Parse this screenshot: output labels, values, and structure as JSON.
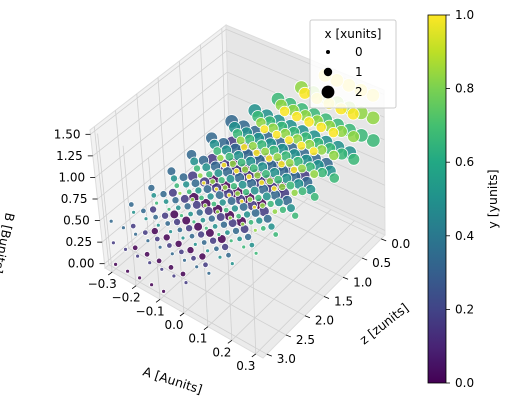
{
  "chart_data": {
    "type": "scatter",
    "projection": "3d",
    "axes": {
      "x": {
        "label": "A [Aunits]",
        "range": [
          -0.33,
          0.33
        ],
        "ticks": [
          -0.3,
          -0.2,
          -0.1,
          0.0,
          0.1,
          0.2,
          0.3
        ],
        "tick_labels": [
          "−0.3",
          "−0.2",
          "−0.1",
          "0.0",
          "0.1",
          "0.2",
          "0.3"
        ]
      },
      "y": {
        "label": "z [zunits]",
        "range": [
          -0.1,
          3.1
        ],
        "ticks": [
          0.0,
          0.5,
          1.0,
          1.5,
          2.0,
          2.5,
          3.0
        ],
        "tick_labels": [
          "0.0",
          "0.5",
          "1.0",
          "1.5",
          "2.0",
          "2.5",
          "3.0"
        ]
      },
      "z": {
        "label": "B [Bunits]",
        "range": [
          -0.05,
          1.55
        ],
        "ticks": [
          0.0,
          0.25,
          0.5,
          0.75,
          1.0,
          1.25,
          1.5
        ],
        "tick_labels": [
          "0.00",
          "0.25",
          "0.50",
          "0.75",
          "1.00",
          "1.25",
          "1.50"
        ]
      }
    },
    "grid": true,
    "encoding": {
      "color": "y [yunits]",
      "size": "x [xunits]"
    },
    "colormap": "viridis",
    "colorbar": {
      "label": "y [yunits]",
      "range": [
        0.0,
        1.0
      ],
      "ticks": [
        0.0,
        0.2,
        0.4,
        0.6,
        0.8,
        1.0
      ],
      "tick_labels": [
        "0.0",
        "0.2",
        "0.4",
        "0.6",
        "0.8",
        "1.0"
      ]
    },
    "legend": {
      "title": "x [xunits]",
      "placement": "top-right",
      "entries": [
        {
          "label": "0",
          "value": 0
        },
        {
          "label": "1",
          "value": 1
        },
        {
          "label": "2",
          "value": 2
        }
      ]
    },
    "points_note": "grid of A × z values; B increases with A, color (y) increases with B, size (x) decreases with z",
    "grid_values": {
      "A": [
        -0.3,
        -0.25,
        -0.2,
        -0.15,
        -0.1,
        -0.05,
        0.0,
        0.05,
        0.1,
        0.15,
        0.2,
        0.25,
        0.3
      ],
      "z": [
        0.0,
        0.5,
        1.0,
        1.5,
        2.0,
        2.5,
        3.0
      ],
      "B_rows": [
        0.0,
        0.25,
        0.5,
        0.75,
        1.0,
        1.25,
        1.5
      ]
    }
  },
  "colors": {
    "pane_x": "#f2f2f2",
    "pane_y": "#e6e6e6",
    "pane_z": "#ebebeb",
    "grid": "#d0d0d0"
  }
}
